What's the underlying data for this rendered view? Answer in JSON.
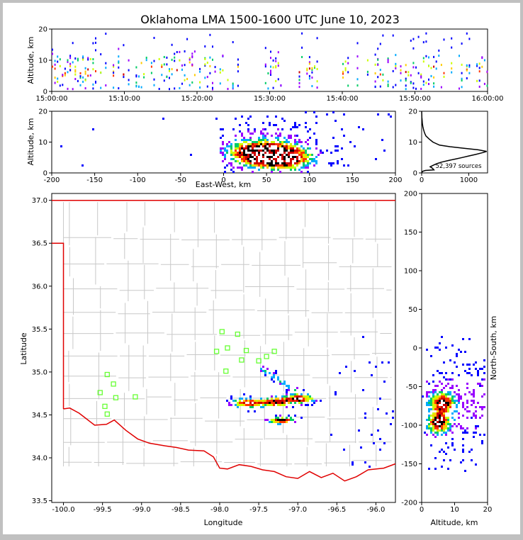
{
  "title": "Oklahoma LMA 1500-1600 UTC June 10, 2023",
  "colors": {
    "state_border": "#e00000",
    "county_lines": "#c8c8c8",
    "station_marker": "#66ff33",
    "histogram_line": "#000000",
    "density_scale": [
      "#0000ff",
      "#9900ff",
      "#00aaff",
      "#00cc66",
      "#ccff00",
      "#ffcc00",
      "#ff3300",
      "#cc0000",
      "#000000",
      "#ffffff"
    ]
  },
  "chart_data": [
    {
      "id": "time-altitude",
      "type": "scatter",
      "xlabel": "",
      "ylabel": "Altitude, km",
      "xticks": [
        "15:00:00",
        "15:10:00",
        "15:20:00",
        "15:30:00",
        "15:40:00",
        "15:50:00",
        "16:00:00"
      ],
      "xlim_minutes": [
        0,
        60
      ],
      "ylim": [
        0,
        20
      ],
      "yticks": [
        0,
        10,
        20
      ],
      "active_intervals_minutes": [
        [
          0,
          26
        ],
        [
          29,
          31.5
        ],
        [
          34,
          36.5
        ],
        [
          40,
          41
        ],
        [
          42,
          60
        ]
      ],
      "altitude_band_km": [
        1,
        19
      ]
    },
    {
      "id": "eastwest-altitude",
      "type": "scatter",
      "xlabel": "East-West, km",
      "ylabel": "Altitude, km",
      "xlim": [
        -200,
        200
      ],
      "xticks": [
        -200,
        -150,
        -100,
        -50,
        0,
        50,
        100,
        150,
        200
      ],
      "ylim": [
        0,
        20
      ],
      "yticks": [
        0,
        10,
        20
      ],
      "core_centers": [
        {
          "x": 35,
          "z": 7
        },
        {
          "x": 55,
          "z": 6
        },
        {
          "x": 72,
          "z": 5
        }
      ],
      "extent_x": [
        0,
        200
      ]
    },
    {
      "id": "altitude-histogram",
      "type": "line",
      "annotation": "52,397 sources",
      "xlim": [
        0,
        1400
      ],
      "xticks": [
        0,
        1000
      ],
      "ylim": [
        0,
        20
      ],
      "yticks": [
        0,
        10,
        20
      ],
      "points": [
        [
          0,
          0
        ],
        [
          20,
          0.5
        ],
        [
          80,
          0.8
        ],
        [
          260,
          1.0
        ],
        [
          230,
          1.5
        ],
        [
          180,
          2.0
        ],
        [
          250,
          2.5
        ],
        [
          320,
          3.0
        ],
        [
          420,
          3.5
        ],
        [
          560,
          4.0
        ],
        [
          720,
          4.5
        ],
        [
          860,
          5.0
        ],
        [
          1000,
          5.5
        ],
        [
          1150,
          6.0
        ],
        [
          1300,
          6.6
        ],
        [
          1380,
          7.0
        ],
        [
          1200,
          7.5
        ],
        [
          900,
          8.0
        ],
        [
          600,
          8.5
        ],
        [
          380,
          9.0
        ],
        [
          240,
          10.0
        ],
        [
          160,
          11.0
        ],
        [
          90,
          12.0
        ],
        [
          60,
          13.0
        ],
        [
          40,
          14.0
        ],
        [
          25,
          15.0
        ],
        [
          15,
          16.0
        ],
        [
          10,
          17.0
        ],
        [
          5,
          18.0
        ],
        [
          0,
          20.0
        ]
      ]
    },
    {
      "id": "plan-view-map",
      "type": "scatter",
      "xlabel": "Longitude",
      "ylabel": "Latitude",
      "xlim": [
        -100.15,
        -95.75
      ],
      "xticks": [
        "-100.0",
        "-99.5",
        "-99.0",
        "-98.5",
        "-98.0",
        "-97.5",
        "-97.0",
        "-96.5",
        "-96.0"
      ],
      "ylim": [
        33.48,
        37.08
      ],
      "yticks": [
        "33.5",
        "34.0",
        "34.5",
        "35.0",
        "35.5",
        "36.0",
        "36.5",
        "37.0"
      ],
      "stations": [
        [
          -97.97,
          35.47
        ],
        [
          -97.77,
          35.44
        ],
        [
          -98.04,
          35.24
        ],
        [
          -97.9,
          35.28
        ],
        [
          -97.66,
          35.25
        ],
        [
          -97.3,
          35.24
        ],
        [
          -97.4,
          35.18
        ],
        [
          -97.5,
          35.13
        ],
        [
          -97.72,
          35.14
        ],
        [
          -97.92,
          35.01
        ],
        [
          -99.44,
          34.97
        ],
        [
          -99.36,
          34.86
        ],
        [
          -99.53,
          34.76
        ],
        [
          -99.33,
          34.7
        ],
        [
          -99.08,
          34.71
        ],
        [
          -99.47,
          34.6
        ],
        [
          -99.44,
          34.51
        ]
      ],
      "storm_cores": [
        {
          "lon": -97.65,
          "lat": 34.65
        },
        {
          "lon": -97.3,
          "lat": 34.66
        },
        {
          "lon": -97.0,
          "lat": 34.7
        },
        {
          "lon": -97.22,
          "lat": 34.45
        }
      ]
    },
    {
      "id": "altitude-northsouth",
      "type": "scatter",
      "xlabel": "Altitude, km",
      "ylabel": "North-South, km",
      "xlim": [
        0,
        20
      ],
      "xticks": [
        0,
        10,
        20
      ],
      "ylim": [
        -200,
        200
      ],
      "yticks": [
        -200,
        -150,
        -100,
        -50,
        0,
        50,
        100,
        150,
        200
      ],
      "core_centers": [
        {
          "z": 6,
          "y": -70
        },
        {
          "z": 5,
          "y": -95
        }
      ]
    }
  ]
}
